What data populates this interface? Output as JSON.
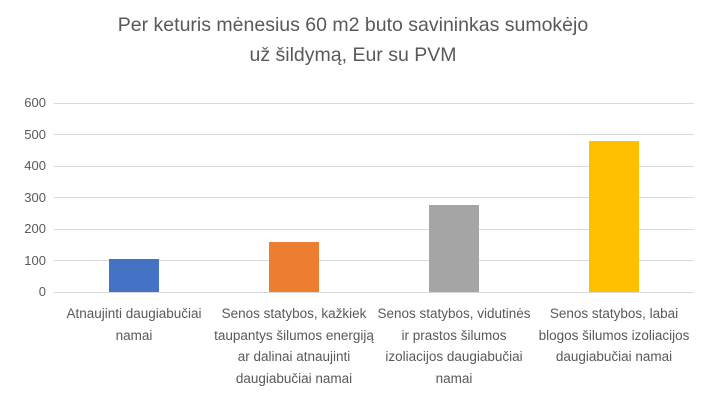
{
  "title": "Per keturis mėnesius 60 m2 buto savininkas sumokėjo už šildymą, Eur su PVM",
  "chart_data": {
    "type": "bar",
    "title": "Per keturis mėnesius 60 m2 buto savininkas sumokėjo už šildymą, Eur su PVM",
    "categories": [
      "Atnaujinti daugiabučiai namai",
      "Senos statybos, kažkiek taupantys šilumos energiją ar dalinai atnaujinti daugiabučiai namai",
      "Senos statybos, vidutinės ir prastos šilumos izoliacijos daugiabučiai namai",
      "Senos statybos, labai blogos šilumos izoliacijos daugiabučiai namai"
    ],
    "values": [
      105,
      160,
      275,
      480
    ],
    "bar_colors": [
      "#4472C4",
      "#ED7D31",
      "#A5A5A5",
      "#FFC000"
    ],
    "xlabel": "",
    "ylabel": "",
    "ylim": [
      0,
      600
    ],
    "yticks": [
      0,
      100,
      200,
      300,
      400,
      500,
      600
    ],
    "grid": true,
    "legend": false
  },
  "colors": {
    "text": "#595959",
    "gridline": "#D9D9D9",
    "background": "#FFFFFF"
  }
}
